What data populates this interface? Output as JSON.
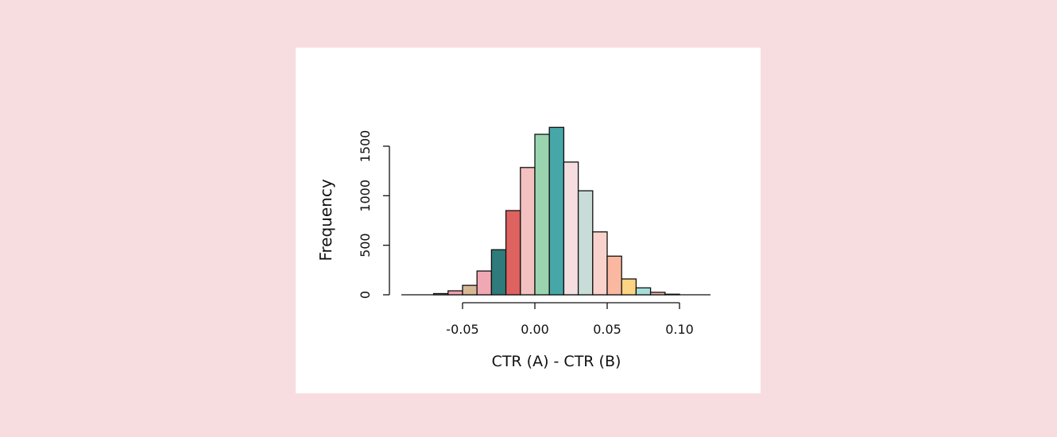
{
  "page": {
    "background": "#f8dde0",
    "card_background": "#ffffff"
  },
  "chart_data": {
    "type": "bar",
    "subtype": "histogram",
    "title": "",
    "xlabel": "CTR (A)  - CTR (B)",
    "ylabel": "Frequency",
    "xlim": [
      -0.09,
      0.12
    ],
    "ylim": [
      0,
      1700
    ],
    "x_ticks": [
      -0.05,
      0.0,
      0.05,
      0.1
    ],
    "x_tick_labels": [
      "-0.05",
      "0.00",
      "0.05",
      "0.10"
    ],
    "y_ticks": [
      0,
      500,
      1000,
      1500
    ],
    "y_tick_labels": [
      "0",
      "500",
      "1000",
      "1500"
    ],
    "grid": false,
    "bin_width": 0.01,
    "bins": [
      {
        "start": -0.07,
        "end": -0.06,
        "count": 12,
        "color": "#f4a6a6"
      },
      {
        "start": -0.06,
        "end": -0.05,
        "count": 40,
        "color": "#f1a0ac"
      },
      {
        "start": -0.05,
        "end": -0.04,
        "count": 95,
        "color": "#d7b894"
      },
      {
        "start": -0.04,
        "end": -0.03,
        "count": 240,
        "color": "#f0a9b4"
      },
      {
        "start": -0.03,
        "end": -0.02,
        "count": 455,
        "color": "#2f7a7a"
      },
      {
        "start": -0.02,
        "end": -0.01,
        "count": 850,
        "color": "#de6260"
      },
      {
        "start": -0.01,
        "end": 0.0,
        "count": 1285,
        "color": "#f2c1c0"
      },
      {
        "start": 0.0,
        "end": 0.01,
        "count": 1620,
        "color": "#9ad4ae"
      },
      {
        "start": 0.01,
        "end": 0.02,
        "count": 1690,
        "color": "#47a7a8"
      },
      {
        "start": 0.02,
        "end": 0.03,
        "count": 1340,
        "color": "#f5dde0"
      },
      {
        "start": 0.03,
        "end": 0.04,
        "count": 1050,
        "color": "#c8ddd7"
      },
      {
        "start": 0.04,
        "end": 0.05,
        "count": 635,
        "color": "#f9d3cb"
      },
      {
        "start": 0.05,
        "end": 0.06,
        "count": 390,
        "color": "#f9b89f"
      },
      {
        "start": 0.06,
        "end": 0.07,
        "count": 160,
        "color": "#fcd483"
      },
      {
        "start": 0.07,
        "end": 0.08,
        "count": 70,
        "color": "#a6ddd6"
      },
      {
        "start": 0.08,
        "end": 0.09,
        "count": 25,
        "color": "#f4b3a8"
      },
      {
        "start": 0.09,
        "end": 0.1,
        "count": 6,
        "color": "#f4c6c6"
      }
    ]
  }
}
